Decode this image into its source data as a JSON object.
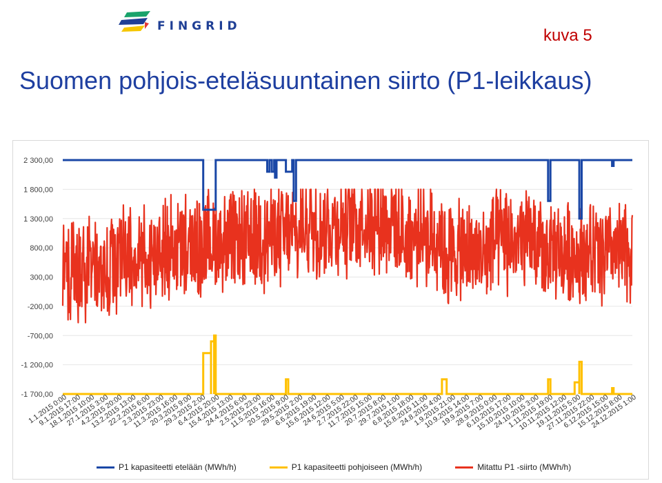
{
  "header": {
    "brand": "FINGRID",
    "figure_label": "kuva 5",
    "title": "Suomen pohjois-eteläsuuntainen siirto (P1-leikkaus)"
  },
  "colors": {
    "title": "#1e3fa0",
    "figure_label": "#c00000",
    "south_capacity": "#1a47a6",
    "north_capacity": "#ffc000",
    "measured": "#e8321e",
    "logo_navy": "#1f3f95",
    "logo_yellow": "#f5c600",
    "logo_green": "#19a36b",
    "logo_red": "#e53935"
  },
  "chart_data": {
    "type": "line",
    "title": "",
    "xlabel": "",
    "ylabel": "",
    "y_ticks": [
      "2 300,00",
      "1 800,00",
      "1 300,00",
      "800,00",
      "300,00",
      "-200,00",
      "-700,00",
      "-1 200,00",
      "-1 700,00"
    ],
    "y_tick_values": [
      2300,
      1800,
      1300,
      800,
      300,
      -200,
      -700,
      -1200,
      -1700
    ],
    "ylim": [
      -1700,
      2300
    ],
    "x_range": [
      "1.1.2015 0:00",
      "31.12.2015 23:00"
    ],
    "x_tick_labels": [
      "1.1.2015 0:00",
      "9.1.2015 17:00",
      "18.1.2015 10:00",
      "27.1.2015 3:00",
      "4.2.2015 20:00",
      "13.2.2015 13:00",
      "22.2.2015 6:00",
      "2.3.2015 23:00",
      "11.3.2015 16:00",
      "20.3.2015 9:00",
      "29.3.2015 2:00",
      "6.4.2015 20:00",
      "15.4.2015 13:00",
      "24.4.2015 6:00",
      "2.5.2015 23:00",
      "11.5.2015 16:00",
      "20.5.2015 9:00",
      "29.5.2015 2:00",
      "6.6.2015 19:00",
      "15.6.2015 12:00",
      "24.6.2015 5:00",
      "2.7.2015 22:00",
      "11.7.2015 15:00",
      "20.7.2015 8:00",
      "29.7.2015 1:00",
      "6.8.2015 18:00",
      "15.8.2015 11:00",
      "24.8.2015 4:00",
      "1.9.2015 21:00",
      "10.9.2015 14:00",
      "19.9.2015 7:00",
      "28.9.2015 0:00",
      "6.10.2015 17:00",
      "15.10.2015 10:00",
      "24.10.2015 3:00",
      "1.11.2015 19:00",
      "10.11.2015 12:00",
      "19.11.2015 5:00",
      "27.11.2015 22:00",
      "6.12.2015 15:00",
      "15.12.2015 8:00",
      "24.12.2015 1:00"
    ],
    "grid": true,
    "legend_position": "bottom",
    "series": [
      {
        "name": "P1 kapasiteetti etelään (MWh/h)",
        "color": "#1a47a6",
        "baseline": 2300,
        "dips": [
          {
            "start_day": 90,
            "end_day": 98,
            "value": 1450
          },
          {
            "start_day": 131,
            "end_day": 132.5,
            "value": 2100
          },
          {
            "start_day": 134,
            "end_day": 135.5,
            "value": 2100
          },
          {
            "start_day": 136,
            "end_day": 137,
            "value": 2000
          },
          {
            "start_day": 143,
            "end_day": 147,
            "value": 2100
          },
          {
            "start_day": 148,
            "end_day": 149.5,
            "value": 1600
          },
          {
            "start_day": 311,
            "end_day": 312.5,
            "value": 1600
          },
          {
            "start_day": 331,
            "end_day": 332.5,
            "value": 1300
          },
          {
            "start_day": 352,
            "end_day": 353,
            "value": 2200
          }
        ]
      },
      {
        "name": "P1 kapasiteetti pohjoiseen (MWh/h)",
        "color": "#ffc000",
        "baseline": -1700,
        "pulses": [
          {
            "start_day": 90,
            "end_day": 95,
            "value": -1000
          },
          {
            "start_day": 95,
            "end_day": 97,
            "value": -800
          },
          {
            "start_day": 97,
            "end_day": 98,
            "value": -700
          },
          {
            "start_day": 143,
            "end_day": 144.5,
            "value": -1450
          },
          {
            "start_day": 243,
            "end_day": 246,
            "value": -1450
          },
          {
            "start_day": 311,
            "end_day": 312.5,
            "value": -1450
          },
          {
            "start_day": 328,
            "end_day": 331,
            "value": -1500
          },
          {
            "start_day": 331,
            "end_day": 332.5,
            "value": -1150
          },
          {
            "start_day": 352,
            "end_day": 353,
            "value": -1600
          }
        ]
      },
      {
        "name": "Mitattu P1 -siirto (MWh/h)",
        "color": "#e8321e",
        "monthly_mean": [
          400,
          600,
          800,
          900,
          1000,
          1200,
          1300,
          1000,
          700,
          900,
          700,
          700
        ],
        "range_min": -600,
        "range_max": 1800
      }
    ]
  }
}
